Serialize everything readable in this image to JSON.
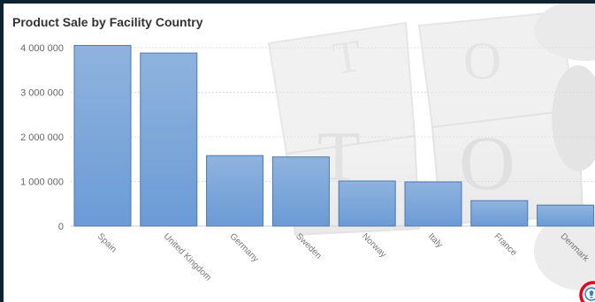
{
  "panel": {
    "title": "Product Sale by Facility Country"
  },
  "chart_data": {
    "type": "bar",
    "title": "Product Sale by Facility Country",
    "xlabel": "",
    "ylabel": "",
    "categories": [
      "Spain",
      "United Kingdom",
      "Germany",
      "Sweden",
      "Norway",
      "Italy",
      "France",
      "Denmark"
    ],
    "values": [
      4050000,
      3880000,
      1580000,
      1550000,
      1010000,
      990000,
      570000,
      470000
    ],
    "ylim": [
      0,
      4000000
    ],
    "yticks": [
      0,
      1000000,
      2000000,
      3000000,
      4000000
    ],
    "ytick_labels": [
      "0",
      "1 000 000",
      "2 000 000",
      "3 000 000",
      "4 000 000"
    ],
    "grid": true,
    "bar_color": "#6b9bd6",
    "bar_color_top": "#8fb3de"
  },
  "info_button": {
    "icon": "info-bulb-icon",
    "highlight_color": "#e0001b"
  }
}
